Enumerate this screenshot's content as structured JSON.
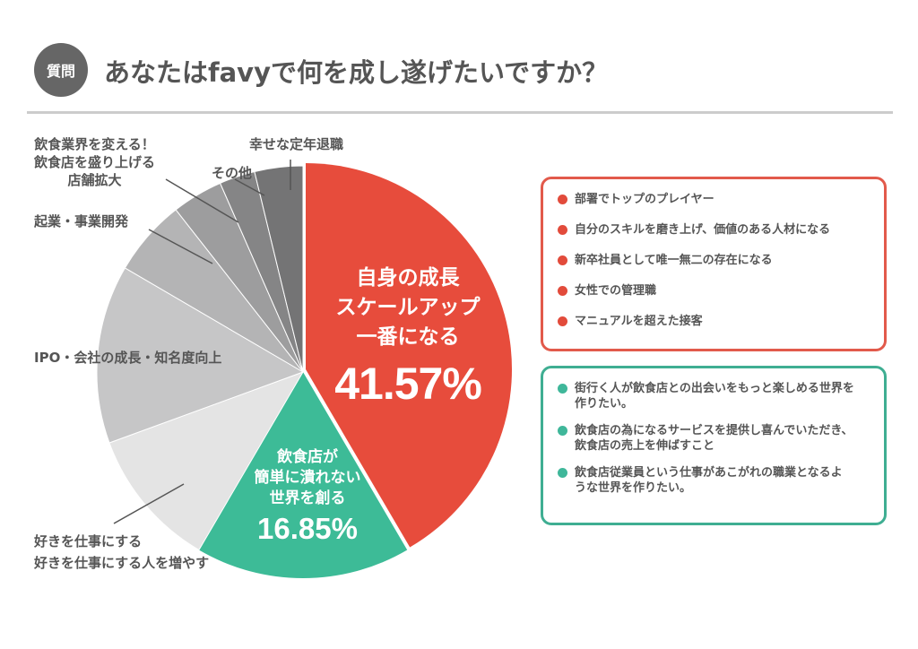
{
  "header": {
    "badge": "質問",
    "title": "あなたはfavyで何を成し遂げたいですか？"
  },
  "colors": {
    "accent_red": "#e74c3c",
    "accent_green": "#3dbb97",
    "title_gray": "#555555"
  },
  "chart_data": {
    "type": "pie",
    "title": "",
    "slices": [
      {
        "name": "自身の成長スケールアップ一番になる",
        "value": 41.57,
        "color": "#e74c3c"
      },
      {
        "name": "飲食店が簡単に潰れない世界を創る",
        "value": 16.85,
        "color": "#3dbb97"
      },
      {
        "name": "好きを仕事にする 好きを仕事にする人を増やす",
        "value": 11.0,
        "color": "#e4e4e4"
      },
      {
        "name": "IPO・会社の成長・知名度向上",
        "value": 14.0,
        "color": "#c6c6c7"
      },
      {
        "name": "起業・事業開発",
        "value": 6.0,
        "color": "#b4b4b5"
      },
      {
        "name": "飲食業界を変える！飲食店を盛り上げる店舗拡大",
        "value": 4.0,
        "color": "#9d9d9e"
      },
      {
        "name": "その他",
        "value": 2.8,
        "color": "#858586"
      },
      {
        "name": "幸せな定年退職",
        "value": 3.78,
        "color": "#747475"
      }
    ]
  },
  "inner_labels": {
    "red": {
      "lines": [
        "自身の成長",
        "スケールアップ",
        "一番になる"
      ],
      "percent": "41.57%"
    },
    "green": {
      "lines": [
        "飲食店が",
        "簡単に潰れない",
        "世界を創る"
      ],
      "percent": "16.85%"
    }
  },
  "outer_labels": {
    "happy_retire": "幸せな定年退職",
    "other": "その他",
    "change_industry": [
      "飲食業界を変える！",
      "飲食店を盛り上げる",
      "店舗拡大"
    ],
    "startup": "起業・事業開発",
    "ipo": "IPO・会社の成長・知名度向上",
    "love_work": [
      "好きを仕事にする",
      "好きを仕事にする人を増やす"
    ]
  },
  "red_box": {
    "items": [
      "部署でトップのプレイヤー",
      "自分のスキルを磨き上げ、価値のある人材になる",
      "新卒社員として唯一無二の存在になる",
      "女性での管理職",
      "マニュアルを超えた接客"
    ]
  },
  "green_box": {
    "items": [
      [
        "街行く人が飲食店との出会いをもっと楽しめる世界を",
        "作りたい。"
      ],
      [
        "飲食店の為になるサービスを提供し喜んでいただき、",
        "飲食店の売上を伸ばすこと"
      ],
      [
        "飲食店従業員という仕事があこがれの職業となるよ",
        "うな世界を作りたい。"
      ]
    ]
  }
}
